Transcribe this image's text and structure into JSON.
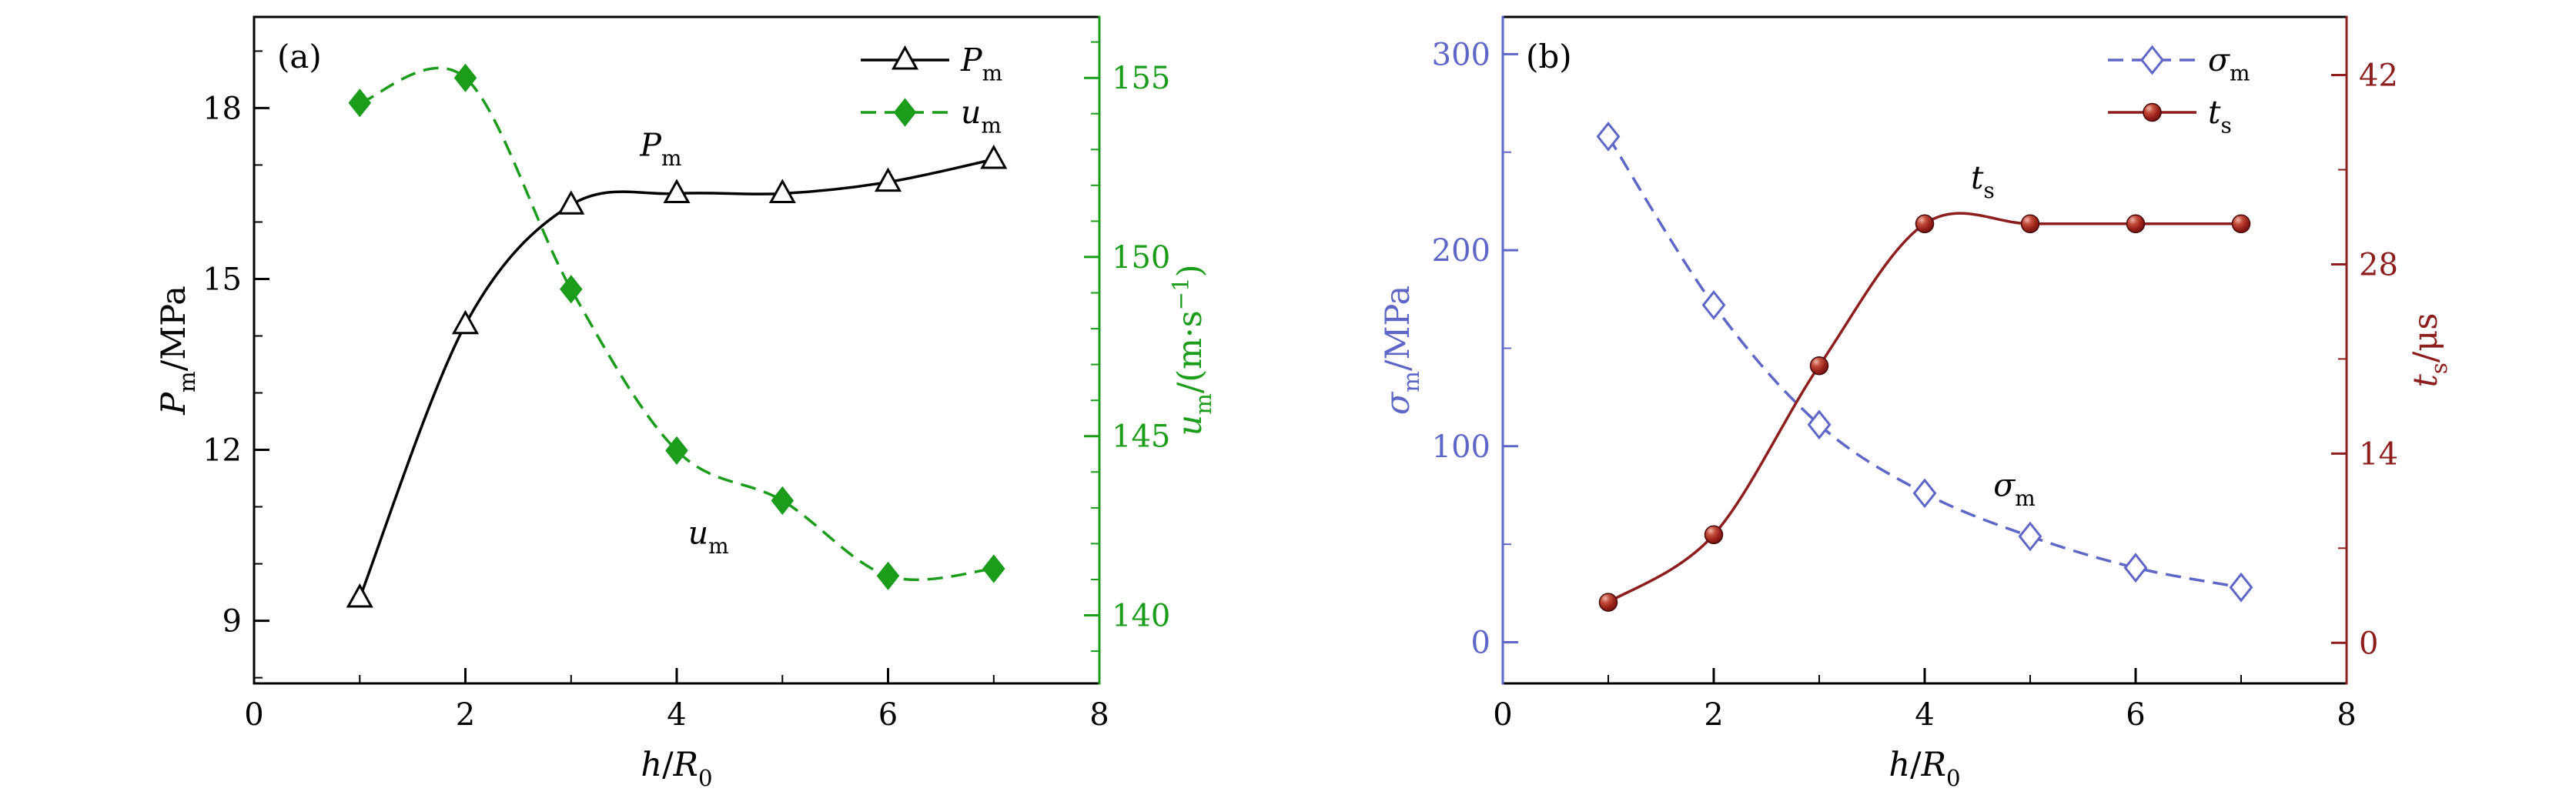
{
  "figure": {
    "background_color": "#ffffff",
    "panel_labels": [
      "(a)",
      "(b)"
    ]
  },
  "colors": {
    "black": "#000000",
    "green": "#1b9c1b",
    "blue": "#5e66c8",
    "dark_red": "#8e1d1d",
    "ball_highlight": "#f2b4aa",
    "ball_mid": "#9a211a",
    "ball_edge": "#600d0d"
  },
  "chart_data": [
    {
      "type": "line",
      "panel_label": "(a)",
      "x": [
        1,
        2,
        3,
        4,
        5,
        6,
        7
      ],
      "xlim": [
        0,
        8
      ],
      "xticks": [
        {
          "v": 0,
          "label": "0"
        },
        {
          "v": 2,
          "label": "2"
        },
        {
          "v": 4,
          "label": "4"
        },
        {
          "v": 6,
          "label": "6"
        },
        {
          "v": 8,
          "label": "8"
        }
      ],
      "xminor": [
        1,
        3,
        5,
        7
      ],
      "xlabel_segments": [
        {
          "text": "h",
          "italic": true
        },
        {
          "text": "/"
        },
        {
          "text": "R",
          "italic": true
        },
        {
          "text": "0",
          "sub": true
        }
      ],
      "axes": {
        "left": {
          "color": "#000000",
          "lim": [
            7.9,
            19.6
          ],
          "ticks": [
            {
              "v": 9,
              "label": "9"
            },
            {
              "v": 12,
              "label": "12"
            },
            {
              "v": 15,
              "label": "15"
            },
            {
              "v": 18,
              "label": "18"
            }
          ],
          "minor": [
            8,
            10,
            11,
            13,
            14,
            16,
            17,
            19
          ],
          "label_segments": [
            {
              "text": "P",
              "italic": true
            },
            {
              "text": "m",
              "sub": true
            },
            {
              "text": "/MPa"
            }
          ]
        },
        "right": {
          "color": "#1b9c1b",
          "lim": [
            138.1,
            156.7
          ],
          "ticks": [
            {
              "v": 140,
              "label": "140"
            },
            {
              "v": 145,
              "label": "145"
            },
            {
              "v": 150,
              "label": "150"
            },
            {
              "v": 155,
              "label": "155"
            }
          ],
          "minor": [
            139,
            141,
            142,
            143,
            144,
            146,
            147,
            148,
            149,
            151,
            152,
            153,
            154,
            156
          ],
          "label_segments": [
            {
              "text": "u",
              "italic": true
            },
            {
              "text": "m",
              "sub": true
            },
            {
              "text": "/(m·s"
            },
            {
              "text": "−1",
              "sup": true
            },
            {
              "text": ")"
            }
          ]
        }
      },
      "series": [
        {
          "name": "Pm",
          "label_segments": [
            {
              "text": "P",
              "italic": true
            },
            {
              "text": "m",
              "sub": true
            }
          ],
          "axis": "left",
          "color": "#000000",
          "line": "solid",
          "marker": "triangle-open",
          "values": [
            9.4,
            14.2,
            16.3,
            16.5,
            16.5,
            16.7,
            17.1
          ]
        },
        {
          "name": "um",
          "label_segments": [
            {
              "text": "u",
              "italic": true
            },
            {
              "text": "m",
              "sub": true
            }
          ],
          "axis": "right",
          "color": "#1b9c1b",
          "line": "dashed",
          "marker": "diamond-filled",
          "values": [
            154.3,
            155.0,
            149.1,
            144.6,
            143.2,
            141.1,
            141.3
          ]
        }
      ],
      "annotations": [
        {
          "segments": [
            {
              "text": "P",
              "italic": true
            },
            {
              "text": "m",
              "sub": true
            }
          ],
          "x": 3.85,
          "y": 17.35,
          "axis": "left"
        },
        {
          "segments": [
            {
              "text": "u",
              "italic": true
            },
            {
              "text": "m",
              "sub": true
            }
          ],
          "x": 4.3,
          "y": 142.3,
          "axis": "right"
        }
      ]
    },
    {
      "type": "line",
      "panel_label": "(b)",
      "x": [
        1,
        2,
        3,
        4,
        5,
        6,
        7
      ],
      "xlim": [
        0,
        8
      ],
      "xticks": [
        {
          "v": 0,
          "label": "0"
        },
        {
          "v": 2,
          "label": "2"
        },
        {
          "v": 4,
          "label": "4"
        },
        {
          "v": 6,
          "label": "6"
        },
        {
          "v": 8,
          "label": "8"
        }
      ],
      "xminor": [
        1,
        3,
        5,
        7
      ],
      "xlabel_segments": [
        {
          "text": "h",
          "italic": true
        },
        {
          "text": "/"
        },
        {
          "text": "R",
          "italic": true
        },
        {
          "text": "0",
          "sub": true
        }
      ],
      "axes": {
        "left": {
          "color": "#5e66c8",
          "lim": [
            -21,
            319
          ],
          "ticks": [
            {
              "v": 0,
              "label": "0"
            },
            {
              "v": 100,
              "label": "100"
            },
            {
              "v": 200,
              "label": "200"
            },
            {
              "v": 300,
              "label": "300"
            }
          ],
          "minor": [
            50,
            150,
            250
          ],
          "label_segments": [
            {
              "text": "σ",
              "italic": true
            },
            {
              "text": "m",
              "sub": true
            },
            {
              "text": "/MPa"
            }
          ]
        },
        "right": {
          "color": "#8e1d1d",
          "lim": [
            -3,
            46.3
          ],
          "ticks": [
            {
              "v": 0,
              "label": "0"
            },
            {
              "v": 14,
              "label": "14"
            },
            {
              "v": 28,
              "label": "28"
            },
            {
              "v": 42,
              "label": "42"
            }
          ],
          "minor": [
            7,
            21,
            35
          ],
          "label_segments": [
            {
              "text": "t",
              "italic": true
            },
            {
              "text": "s",
              "sub": true
            },
            {
              "text": "/μs"
            }
          ]
        }
      },
      "series": [
        {
          "name": "sigma_m",
          "label_segments": [
            {
              "text": "σ",
              "italic": true
            },
            {
              "text": "m",
              "sub": true
            }
          ],
          "axis": "left",
          "color": "#5e66c8",
          "line": "dashed",
          "marker": "diamond-open",
          "values": [
            258,
            172,
            111,
            76,
            54,
            38,
            28
          ]
        },
        {
          "name": "t_s",
          "label_segments": [
            {
              "text": "t",
              "italic": true
            },
            {
              "text": "s",
              "sub": true
            }
          ],
          "axis": "right",
          "color": "#8e1d1d",
          "line": "solid",
          "marker": "ball",
          "values": [
            3,
            8,
            20.5,
            31,
            31,
            31,
            31
          ]
        }
      ],
      "annotations": [
        {
          "segments": [
            {
              "text": "t",
              "italic": true
            },
            {
              "text": "s",
              "sub": true
            }
          ],
          "x": 4.55,
          "y": 237,
          "axis": "left"
        },
        {
          "segments": [
            {
              "text": "σ",
              "italic": true
            },
            {
              "text": "m",
              "sub": true
            }
          ],
          "x": 4.85,
          "y": 80,
          "axis": "left"
        }
      ]
    }
  ]
}
